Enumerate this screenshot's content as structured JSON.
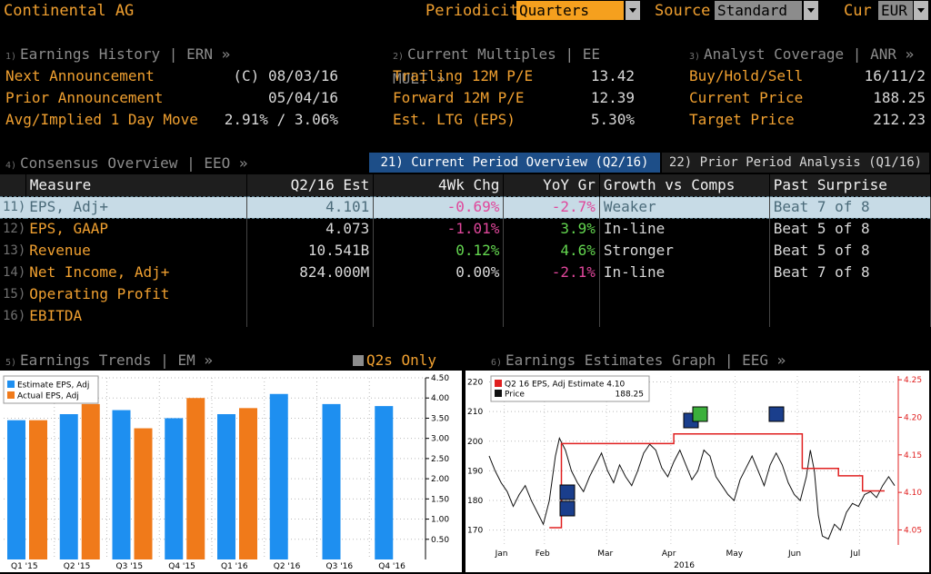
{
  "header": {
    "company": "Continental AG",
    "periodicity_label": "Periodicity",
    "periodicity_value": "Quarters",
    "source_label": "Source",
    "source_value": "Standard",
    "cur_label": "Cur",
    "cur_value": "EUR"
  },
  "earnings_history": {
    "num": "1)",
    "title": "Earnings History | ERN »",
    "rows": [
      {
        "label": "Next Announcement",
        "value": "(C)  08/03/16"
      },
      {
        "label": "Prior Announcement",
        "value": "05/04/16"
      },
      {
        "label": "Avg/Implied 1 Day Move",
        "value": "2.91% / 3.06%"
      }
    ]
  },
  "current_multiples": {
    "num": "2)",
    "title": "Current Multiples | EE MULT »",
    "rows": [
      {
        "label": "Trailing 12M P/E",
        "value": "13.42"
      },
      {
        "label": "Forward 12M P/E",
        "value": "12.39"
      },
      {
        "label": "Est. LTG (EPS)",
        "value": "5.30%"
      }
    ]
  },
  "analyst_coverage": {
    "num": "3)",
    "title": "Analyst Coverage | ANR »",
    "rows": [
      {
        "label": "Buy/Hold/Sell",
        "value": "16/11/2"
      },
      {
        "label": "Current Price",
        "value": "188.25"
      },
      {
        "label": "Target Price",
        "value": "212.23"
      }
    ]
  },
  "consensus": {
    "num": "4)",
    "title": "Consensus Overview | EEO »",
    "tab_current": "21) Current Period Overview (Q2/16)",
    "tab_prior": "22) Prior Period Analysis (Q1/16)",
    "columns": [
      "Measure",
      "Q2/16 Est",
      "4Wk Chg",
      "YoY Gr",
      "Growth vs Comps",
      "Past Surprise"
    ],
    "rows": [
      {
        "num": "11)",
        "measure": "EPS, Adj+",
        "est": "4.101",
        "chg": "-0.69%",
        "yoy": "-2.7%",
        "growth": "Weaker",
        "surprise": "Beat 7 of 8"
      },
      {
        "num": "12)",
        "measure": "EPS, GAAP",
        "est": "4.073",
        "chg": "-1.01%",
        "yoy": "3.9%",
        "growth": "In-line",
        "surprise": "Beat 5 of 8"
      },
      {
        "num": "13)",
        "measure": "Revenue",
        "est": "10.541B",
        "chg": "0.12%",
        "yoy": "4.6%",
        "growth": "Stronger",
        "surprise": "Beat 5 of 8"
      },
      {
        "num": "14)",
        "measure": "Net Income, Adj+",
        "est": "824.000M",
        "chg": "0.00%",
        "yoy": "-2.1%",
        "growth": "In-line",
        "surprise": "Beat 7 of 8"
      },
      {
        "num": "15)",
        "measure": "Operating Profit",
        "est": "",
        "chg": "",
        "yoy": "",
        "growth": "",
        "surprise": ""
      },
      {
        "num": "16)",
        "measure": "EBITDA",
        "est": "",
        "chg": "",
        "yoy": "",
        "growth": "",
        "surprise": ""
      }
    ]
  },
  "chart_data": [
    {
      "type": "bar",
      "num": "5)",
      "title": "Earnings Trends | EM »",
      "toggle_label": "Q2s Only",
      "categories": [
        "Q1 '15",
        "Q2 '15",
        "Q3 '15",
        "Q4 '15",
        "Q1 '16",
        "Q2 '16",
        "Q3 '16",
        "Q4 '16"
      ],
      "series": [
        {
          "name": "Estimate EPS, Adj",
          "color": "#1e8ff0",
          "values": [
            3.45,
            3.6,
            3.7,
            3.5,
            3.6,
            4.1,
            3.85,
            3.8
          ]
        },
        {
          "name": "Actual EPS, Adj",
          "color": "#f07a1a",
          "values": [
            3.45,
            3.85,
            3.25,
            4.0,
            3.75,
            null,
            null,
            null
          ]
        }
      ],
      "ylim": [
        0,
        4.5
      ],
      "yticks": [
        "4.50",
        "4.00",
        "3.50",
        "3.00",
        "2.50",
        "2.00",
        "1.50",
        "1.00",
        "0.50"
      ],
      "legend": "top-left"
    },
    {
      "type": "line",
      "num": "6)",
      "title": "Earnings Estimates Graph | EEG »",
      "legend_items": [
        {
          "name": "Q2 16 EPS, Adj Estimate",
          "value": "4.10",
          "color": "#e02020"
        },
        {
          "name": "Price",
          "value": "188.25",
          "color": "#111111"
        }
      ],
      "x_labels": [
        "Jan",
        "Feb",
        "Mar",
        "Apr",
        "May",
        "Jun",
        "Jul"
      ],
      "x_year": "2016",
      "left_ticks": [
        "220",
        "210",
        "200",
        "190",
        "180",
        "170"
      ],
      "right_ticks": [
        "4.25",
        "4.20",
        "4.15",
        "4.10",
        "4.05"
      ],
      "left_range": [
        165,
        222
      ],
      "right_range": [
        4.03,
        4.255
      ],
      "price": [
        [
          0,
          195
        ],
        [
          0.3,
          190
        ],
        [
          0.6,
          186
        ],
        [
          0.9,
          183
        ],
        [
          1.2,
          178
        ],
        [
          1.5,
          182
        ],
        [
          1.8,
          185
        ],
        [
          2.1,
          180
        ],
        [
          2.4,
          176
        ],
        [
          2.7,
          172
        ],
        [
          3.0,
          180
        ],
        [
          3.3,
          195
        ],
        [
          3.5,
          201
        ],
        [
          3.8,
          197
        ],
        [
          4.1,
          190
        ],
        [
          4.4,
          186
        ],
        [
          4.7,
          183
        ],
        [
          5.0,
          188
        ],
        [
          5.3,
          192
        ],
        [
          5.6,
          196
        ],
        [
          5.9,
          190
        ],
        [
          6.2,
          186
        ],
        [
          6.5,
          192
        ],
        [
          6.8,
          188
        ],
        [
          7.1,
          185
        ],
        [
          7.4,
          190
        ],
        [
          7.7,
          196
        ],
        [
          8.0,
          199
        ],
        [
          8.3,
          197
        ],
        [
          8.6,
          191
        ],
        [
          8.9,
          188
        ],
        [
          9.2,
          193
        ],
        [
          9.5,
          197
        ],
        [
          9.8,
          192
        ],
        [
          10.1,
          187
        ],
        [
          10.4,
          190
        ],
        [
          10.7,
          197
        ],
        [
          11.0,
          195
        ],
        [
          11.3,
          188
        ],
        [
          11.6,
          185
        ],
        [
          11.9,
          182
        ],
        [
          12.2,
          180
        ],
        [
          12.5,
          187
        ],
        [
          12.8,
          191
        ],
        [
          13.1,
          195
        ],
        [
          13.4,
          190
        ],
        [
          13.7,
          185
        ],
        [
          14.0,
          192
        ],
        [
          14.3,
          196
        ],
        [
          14.6,
          192
        ],
        [
          14.9,
          186
        ],
        [
          15.2,
          182
        ],
        [
          15.5,
          180
        ],
        [
          15.8,
          188
        ],
        [
          16.0,
          197
        ],
        [
          16.2,
          190
        ],
        [
          16.4,
          175
        ],
        [
          16.6,
          168
        ],
        [
          16.9,
          167
        ],
        [
          17.2,
          172
        ],
        [
          17.5,
          170
        ],
        [
          17.8,
          176
        ],
        [
          18.1,
          179
        ],
        [
          18.4,
          178
        ],
        [
          18.7,
          182
        ],
        [
          19.0,
          183
        ],
        [
          19.3,
          181
        ],
        [
          19.6,
          185
        ],
        [
          19.9,
          188
        ],
        [
          20.2,
          185
        ]
      ],
      "estimate": [
        [
          3.0,
          4.053
        ],
        [
          3.6,
          4.053
        ],
        [
          3.6,
          4.165
        ],
        [
          9.2,
          4.165
        ],
        [
          9.2,
          4.178
        ],
        [
          15.6,
          4.178
        ],
        [
          15.6,
          4.132
        ],
        [
          17.4,
          4.132
        ],
        [
          17.4,
          4.122
        ],
        [
          18.6,
          4.122
        ],
        [
          18.6,
          4.102
        ],
        [
          19.7,
          4.102
        ]
      ],
      "x_max": 20.2
    }
  ]
}
